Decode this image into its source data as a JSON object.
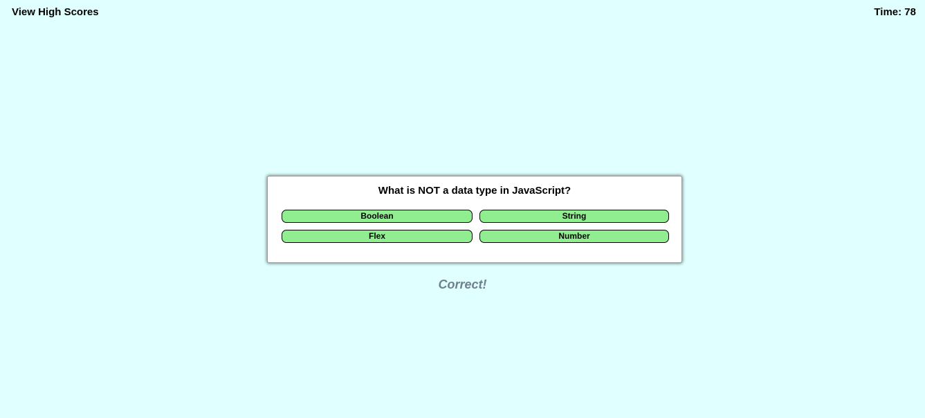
{
  "header": {
    "high_scores_label": "View High Scores",
    "timer_text": "Time: 78"
  },
  "quiz": {
    "question": "What is NOT a data type in JavaScript?",
    "answers": [
      "Boolean",
      "String",
      "Flex",
      "Number"
    ]
  },
  "feedback": {
    "text": "Correct!"
  },
  "colors": {
    "background": "#e0ffff",
    "answer_button": "#90ee90",
    "feedback_text": "#708090"
  }
}
